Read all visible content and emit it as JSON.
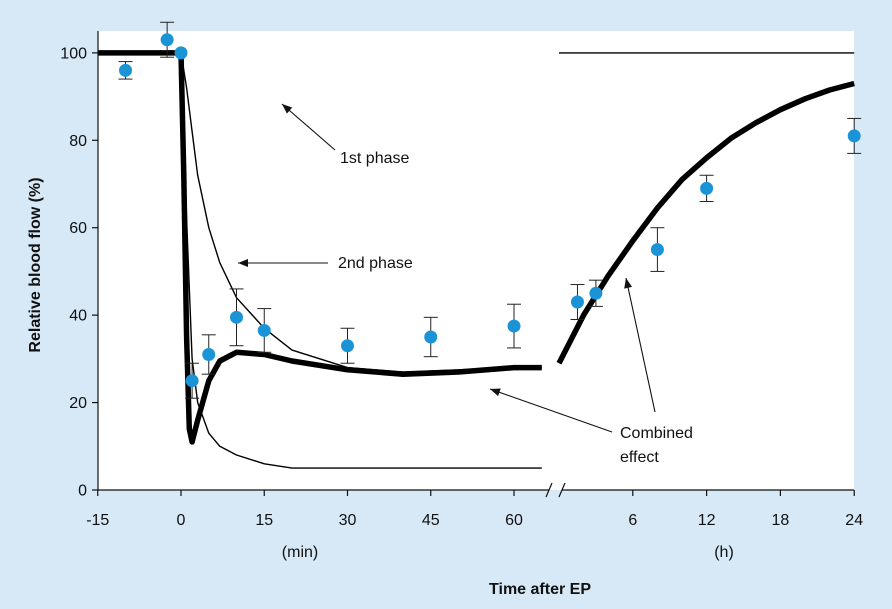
{
  "chart_data": {
    "type": "line",
    "xlabel": "Time after EP",
    "ylabel": "Relative blood flow (%)",
    "ylim": [
      0,
      105
    ],
    "yticks": [
      "0",
      "20",
      "40",
      "60",
      "80",
      "100"
    ],
    "x_min_ticks": [
      "-15",
      "0",
      "15",
      "30",
      "45",
      "60"
    ],
    "x_h_ticks": [
      "6",
      "12",
      "18",
      "24"
    ],
    "x_min_unit": "(min)",
    "x_h_unit": "(h)",
    "grid": false,
    "colors": {
      "points": "#1a94d6",
      "curves": "#000000",
      "background": "#d7e8f6"
    },
    "annotations": {
      "first_phase": "1st phase",
      "second_phase": "2nd phase",
      "combined_1": "Combined",
      "combined_2": "effect"
    },
    "points_min": [
      {
        "x": -10,
        "y": 96,
        "err": 2
      },
      {
        "x": -2.5,
        "y": 103,
        "err": 4
      },
      {
        "x": 0,
        "y": 100,
        "err": 0
      },
      {
        "x": 2,
        "y": 25,
        "err": 4
      },
      {
        "x": 5,
        "y": 31,
        "err": 4.5
      },
      {
        "x": 10,
        "y": 39.5,
        "err": 6.5
      },
      {
        "x": 15,
        "y": 36.5,
        "err": 5
      },
      {
        "x": 30,
        "y": 33,
        "err": 4
      },
      {
        "x": 45,
        "y": 35,
        "err": 4.5
      },
      {
        "x": 60,
        "y": 37.5,
        "err": 5
      }
    ],
    "points_h": [
      {
        "x": 1.5,
        "y": 43,
        "err": 4
      },
      {
        "x": 3,
        "y": 45,
        "err": 3
      },
      {
        "x": 8,
        "y": 55,
        "err": 5
      },
      {
        "x": 12,
        "y": 69,
        "err": 3
      },
      {
        "x": 24,
        "y": 81,
        "err": 4
      }
    ],
    "series": [
      {
        "segment": "min",
        "x": [
          -15,
          -1,
          0,
          1,
          2,
          3,
          5,
          7,
          10,
          15,
          20,
          30,
          40,
          50,
          60,
          65
        ],
        "y": [
          100,
          100,
          100,
          62,
          30,
          20,
          13,
          10,
          8,
          6,
          5,
          5,
          5,
          5,
          5,
          5
        ]
      },
      {
        "segment": "min",
        "x": [
          0,
          1,
          2,
          3,
          5,
          7,
          10,
          15,
          20,
          30,
          40,
          50,
          60,
          65
        ],
        "y": [
          100,
          92,
          82,
          72,
          60,
          52,
          44,
          37,
          32,
          28,
          27,
          27.5,
          28,
          28
        ]
      },
      {
        "segment": "min",
        "x": [
          -15,
          -1,
          0,
          0.5,
          1,
          1.5,
          2,
          3,
          5,
          7,
          10,
          15,
          20,
          30,
          40,
          50,
          60,
          65
        ],
        "y": [
          100,
          100,
          100,
          72,
          35,
          14,
          11,
          16,
          25,
          29.5,
          31.5,
          31,
          29.5,
          27.5,
          26.5,
          27,
          28,
          28
        ]
      },
      {
        "segment": "h",
        "x": [
          0,
          2,
          4,
          6,
          8,
          10,
          12,
          14,
          16,
          18,
          20,
          22,
          24
        ],
        "y": [
          29,
          40,
          49,
          57,
          64.5,
          71,
          76,
          80.5,
          84,
          87,
          89.5,
          91.5,
          93
        ]
      },
      {
        "segment": "h",
        "x": [
          0,
          24
        ],
        "y": [
          100,
          100
        ]
      }
    ]
  }
}
